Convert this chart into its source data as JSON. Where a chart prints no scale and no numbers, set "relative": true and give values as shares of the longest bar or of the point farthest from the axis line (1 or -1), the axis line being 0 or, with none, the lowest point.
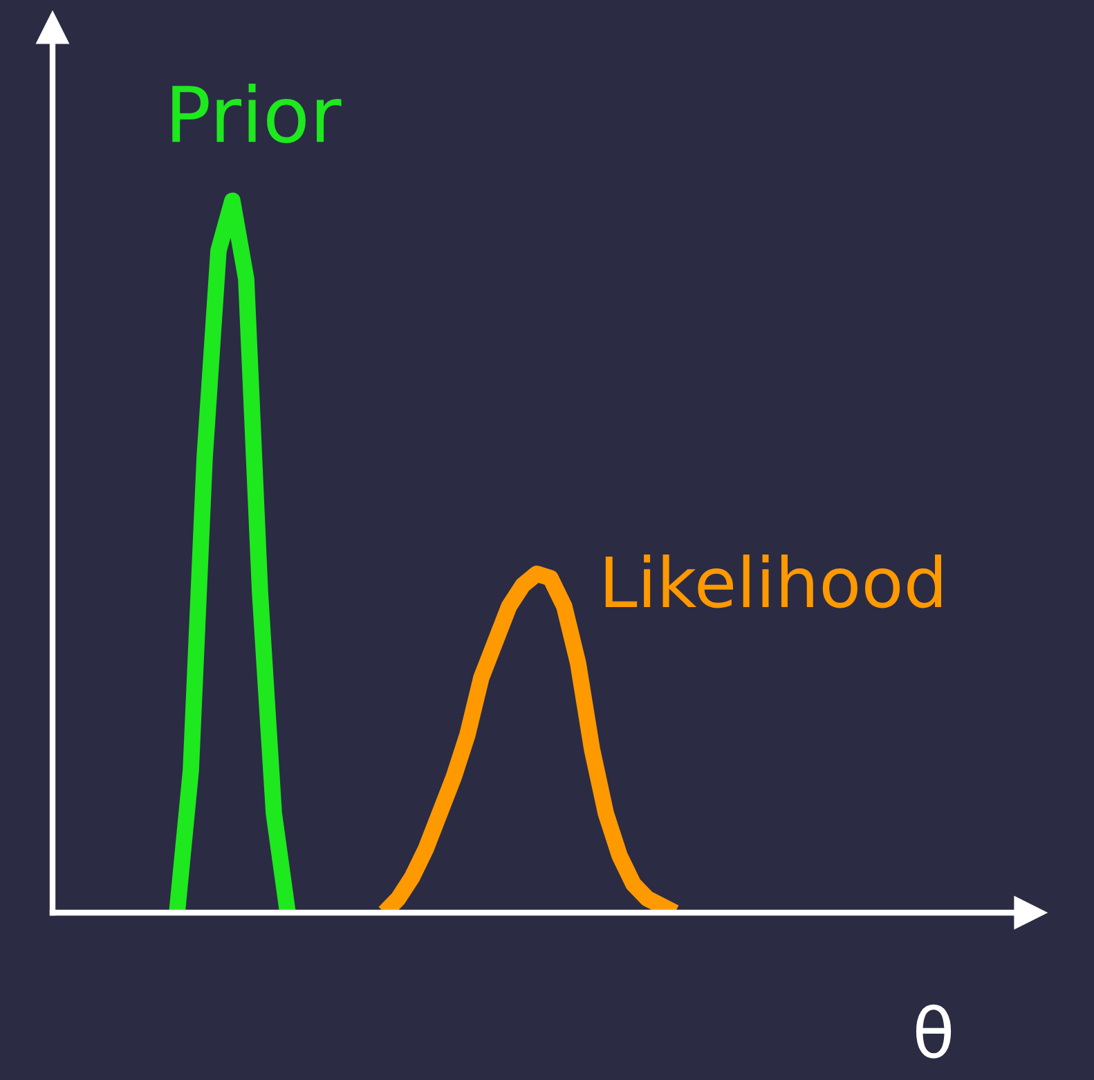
{
  "chart_data": {
    "type": "line",
    "relative": true,
    "xlabel": "θ",
    "legend": false,
    "grid": false,
    "marker": "none",
    "line_style": "solid",
    "categories": [
      null,
      null,
      null,
      null,
      null,
      null,
      null,
      null,
      null,
      null,
      null,
      null,
      null,
      null,
      null,
      null,
      null,
      null,
      null,
      null,
      null,
      null,
      null,
      null,
      null,
      null,
      null,
      null,
      null,
      null,
      null,
      null,
      null,
      null,
      null,
      null,
      null,
      null,
      null,
      null,
      null,
      null,
      null,
      null,
      null,
      null,
      null,
      null,
      null,
      null,
      null,
      null,
      null,
      null,
      null,
      null,
      null,
      null,
      null,
      null,
      null,
      null,
      null,
      null,
      null,
      null,
      null,
      null,
      null,
      null,
      null
    ],
    "series": [
      {
        "name": "Prior",
        "color": "#1ee81e",
        "values": [
          null,
          null,
          null,
          null,
          null,
          null,
          null,
          null,
          null,
          0.0,
          0.2,
          0.64,
          0.93,
          1.0,
          0.89,
          0.45,
          0.14,
          0.0,
          null,
          null,
          null,
          null,
          null,
          null,
          null,
          null,
          null,
          null,
          null,
          null,
          null,
          null,
          null,
          null,
          null,
          null,
          null,
          null,
          null,
          null,
          null,
          null,
          null,
          null,
          null,
          null,
          null,
          null,
          null,
          null,
          null,
          null,
          null,
          null,
          null,
          null,
          null,
          null,
          null,
          null,
          null,
          null,
          null,
          null,
          null,
          null,
          null,
          null,
          null,
          null,
          null
        ]
      },
      {
        "name": "Likelihood",
        "color": "#ff9900",
        "values": [
          null,
          null,
          null,
          null,
          null,
          null,
          null,
          null,
          null,
          null,
          null,
          null,
          null,
          null,
          null,
          null,
          null,
          null,
          null,
          null,
          null,
          null,
          null,
          null,
          0.0,
          0.02,
          0.05,
          0.09,
          0.14,
          0.19,
          0.25,
          0.33,
          0.38,
          0.43,
          0.46,
          0.476,
          0.47,
          0.43,
          0.35,
          0.23,
          0.14,
          0.08,
          0.04,
          0.02,
          0.01,
          0.0,
          null,
          null,
          null,
          null,
          null,
          null,
          null,
          null,
          null,
          null,
          null,
          null,
          null,
          null,
          null,
          null,
          null,
          null,
          null,
          null,
          null,
          null,
          null,
          null,
          null
        ]
      }
    ]
  }
}
